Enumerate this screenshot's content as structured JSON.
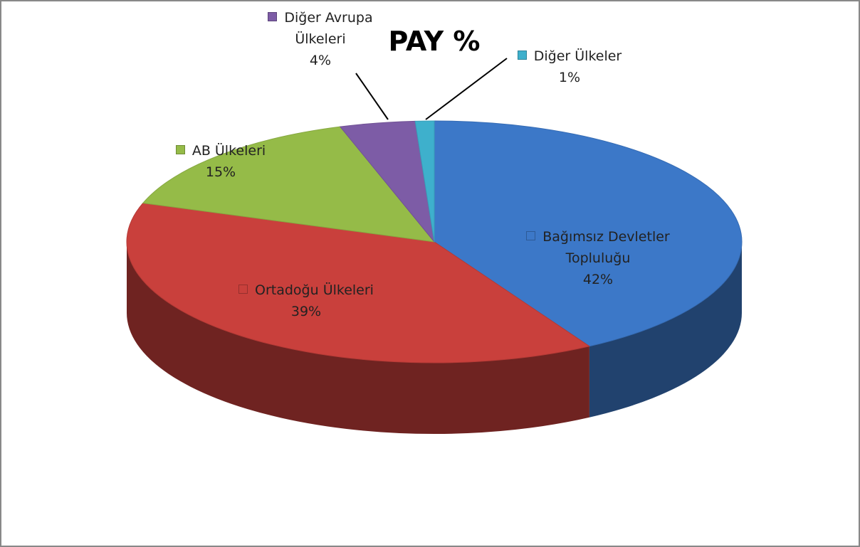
{
  "chart_data": {
    "type": "pie3d",
    "title": "PAY %",
    "categories": [
      "Bağımsız Devletler Topluluğu",
      "Ortadoğu Ülkeleri",
      "AB Ülkeleri",
      "Diğer Avrupa Ülkeleri",
      "Diğer Ülkeler"
    ],
    "values": [
      42,
      39,
      15,
      4,
      1
    ],
    "value_labels": [
      "42%",
      "39%",
      "15%",
      "4%",
      "1%"
    ],
    "colors": [
      "#3c78c8",
      "#c9403c",
      "#95bb48",
      "#7d5ca6",
      "#3eb0cc"
    ]
  }
}
